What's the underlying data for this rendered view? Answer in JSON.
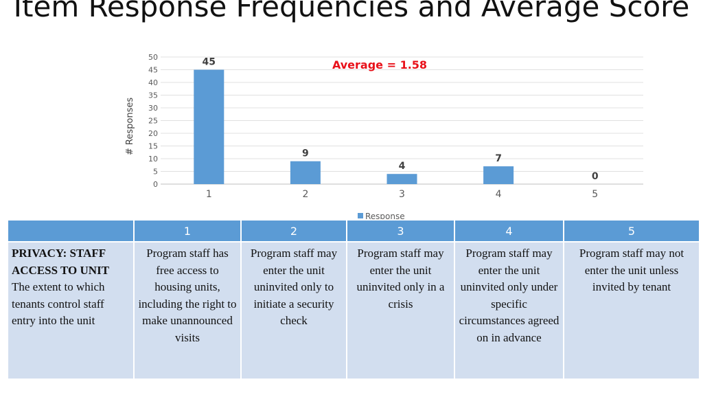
{
  "slide": {
    "title": "Item Response Frequencies and Average Score"
  },
  "chart_data": {
    "type": "bar",
    "categories": [
      "1",
      "2",
      "3",
      "4",
      "5"
    ],
    "series": [
      {
        "name": "Response",
        "values": [
          45,
          9,
          4,
          7,
          0
        ],
        "color": "#5b9bd5"
      }
    ],
    "title": "",
    "xlabel": "",
    "ylabel": "# Responses",
    "ylim": [
      0,
      50
    ],
    "yticks": [
      0,
      5,
      10,
      15,
      20,
      25,
      30,
      35,
      40,
      45,
      50
    ],
    "grid": true,
    "legend": "bottom",
    "annotation": {
      "text": "Average = 1.58",
      "color": "#e8111a"
    }
  },
  "table": {
    "headers": [
      "",
      "1",
      "2",
      "3",
      "4",
      "5"
    ],
    "item_title": "PRIVACY: STAFF ACCESS TO UNIT",
    "item_description": "The extent to which tenants control staff entry into the unit",
    "anchors": [
      "Program staff has free access to housing units, including the right to make unannounced visits",
      "Program staff may enter the unit uninvited only to initiate a security check",
      "Program staff may enter the unit uninvited only in a crisis",
      "Program staff may enter the unit uninvited only under specific circumstances agreed on in advance",
      "Program staff may not enter the unit unless invited by tenant"
    ]
  }
}
